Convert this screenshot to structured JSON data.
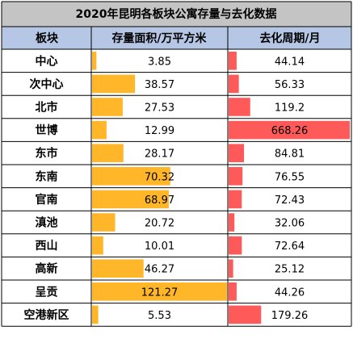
{
  "chart_data": {
    "type": "table",
    "title": "2020年昆明各板块公寓存量与去化数据",
    "columns": [
      "板块",
      "存量面积/万平方米",
      "去化周期/月"
    ],
    "rows": [
      {
        "name": "中心",
        "stock": 3.85,
        "stock_label": "3.85",
        "period": 44.14,
        "period_label": "44.14"
      },
      {
        "name": "次中心",
        "stock": 38.57,
        "stock_label": "38.57",
        "period": 56.33,
        "period_label": "56.33"
      },
      {
        "name": "北市",
        "stock": 27.53,
        "stock_label": "27.53",
        "period": 119.2,
        "period_label": "119.2"
      },
      {
        "name": "世博",
        "stock": 12.99,
        "stock_label": "12.99",
        "period": 668.26,
        "period_label": "668.26"
      },
      {
        "name": "东市",
        "stock": 28.17,
        "stock_label": "28.17",
        "period": 84.81,
        "period_label": "84.81"
      },
      {
        "name": "东南",
        "stock": 70.32,
        "stock_label": "70.32",
        "period": 76.55,
        "period_label": "76.55"
      },
      {
        "name": "官南",
        "stock": 68.97,
        "stock_label": "68.97",
        "period": 72.43,
        "period_label": "72.43"
      },
      {
        "name": "滇池",
        "stock": 20.72,
        "stock_label": "20.72",
        "period": 32.06,
        "period_label": "32.06"
      },
      {
        "name": "西山",
        "stock": 10.01,
        "stock_label": "10.01",
        "period": 72.64,
        "period_label": "72.64"
      },
      {
        "name": "高新",
        "stock": 46.27,
        "stock_label": "46.27",
        "period": 25.12,
        "period_label": "25.12"
      },
      {
        "name": "呈贡",
        "stock": 121.27,
        "stock_label": "121.27",
        "period": 44.26,
        "period_label": "44.26"
      },
      {
        "name": "空港新区",
        "stock": 5.53,
        "stock_label": "5.53",
        "period": 179.26,
        "period_label": "179.26"
      }
    ],
    "stock_bar_max": 121.27,
    "period_bar_max": 668.26
  },
  "colors": {
    "title_bg": "#c4c4c4",
    "header_bg": "#b5c7e5",
    "grid": "#000000",
    "stock_bar": "#ffb628",
    "period_bar": "#ff5a5a",
    "text": "#000000"
  }
}
